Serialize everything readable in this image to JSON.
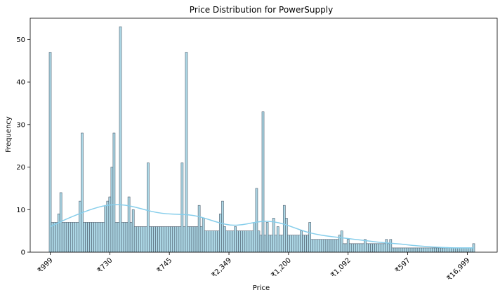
{
  "chart_data": {
    "type": "bar",
    "title": "Price Distribution for PowerSupply",
    "xlabel": "Price",
    "ylabel": "Frequency",
    "ylim": [
      0,
      55
    ],
    "yticks": [
      0,
      10,
      20,
      30,
      40,
      50
    ],
    "xtick_labels": [
      "₹999",
      "₹730",
      "₹745",
      "₹2,349",
      "₹1,200",
      "₹1,092",
      "₹597",
      "₹16,999"
    ],
    "xtick_bins": [
      0,
      28,
      56,
      84,
      112,
      140,
      168,
      196
    ],
    "bin_count": 200,
    "values": [
      47,
      7,
      7,
      7,
      9,
      14,
      7,
      7,
      7,
      7,
      7,
      7,
      7,
      7,
      12,
      28,
      7,
      7,
      7,
      7,
      7,
      7,
      7,
      7,
      7,
      7,
      11,
      12,
      13,
      20,
      28,
      7,
      7,
      53,
      7,
      7,
      7,
      13,
      7,
      10,
      6,
      6,
      6,
      6,
      6,
      6,
      21,
      6,
      6,
      6,
      6,
      6,
      6,
      6,
      6,
      6,
      6,
      6,
      6,
      6,
      6,
      6,
      21,
      6,
      47,
      6,
      6,
      6,
      6,
      6,
      11,
      6,
      8,
      5,
      5,
      5,
      5,
      5,
      5,
      5,
      9,
      12,
      6,
      5,
      5,
      5,
      5,
      6,
      5,
      5,
      5,
      5,
      5,
      5,
      5,
      5,
      7,
      15,
      5,
      4,
      33,
      4,
      7,
      4,
      4,
      8,
      4,
      6,
      4,
      4,
      11,
      8,
      4,
      4,
      4,
      4,
      4,
      4,
      5,
      4,
      4,
      4,
      7,
      3,
      3,
      3,
      3,
      3,
      3,
      3,
      3,
      3,
      3,
      3,
      3,
      3,
      4,
      5,
      2,
      2,
      3,
      2,
      2,
      2,
      2,
      2,
      2,
      2,
      3,
      2,
      2,
      2,
      2,
      2,
      2,
      2,
      2,
      2,
      3,
      2,
      3,
      1,
      1,
      1,
      1,
      1,
      1,
      1,
      1,
      1,
      1,
      1,
      1,
      1,
      1,
      1,
      1,
      1,
      1,
      1,
      1,
      1,
      1,
      1,
      1,
      1,
      1,
      1,
      1,
      1,
      1,
      1,
      1,
      1,
      1,
      1,
      1,
      1,
      1,
      2
    ],
    "kde": [
      [
        0,
        6.0
      ],
      [
        5,
        7.2
      ],
      [
        10,
        8.3
      ],
      [
        15,
        9.3
      ],
      [
        20,
        10.2
      ],
      [
        25,
        10.9
      ],
      [
        30,
        11.2
      ],
      [
        35,
        11.1
      ],
      [
        40,
        10.6
      ],
      [
        45,
        9.9
      ],
      [
        50,
        9.3
      ],
      [
        55,
        9.0
      ],
      [
        60,
        8.9
      ],
      [
        65,
        8.8
      ],
      [
        70,
        8.4
      ],
      [
        75,
        7.6
      ],
      [
        80,
        6.8
      ],
      [
        85,
        6.3
      ],
      [
        90,
        6.4
      ],
      [
        95,
        6.9
      ],
      [
        100,
        7.3
      ],
      [
        105,
        7.2
      ],
      [
        110,
        6.6
      ],
      [
        115,
        5.7
      ],
      [
        120,
        4.8
      ],
      [
        125,
        4.2
      ],
      [
        130,
        3.8
      ],
      [
        135,
        3.5
      ],
      [
        140,
        3.2
      ],
      [
        145,
        2.9
      ],
      [
        150,
        2.6
      ],
      [
        155,
        2.3
      ],
      [
        160,
        2.1
      ],
      [
        165,
        1.9
      ],
      [
        170,
        1.6
      ],
      [
        175,
        1.4
      ],
      [
        180,
        1.2
      ],
      [
        185,
        1.1
      ],
      [
        190,
        1.0
      ],
      [
        195,
        1.0
      ],
      [
        199,
        1.0
      ]
    ],
    "colors": {
      "bar_fill": "#add8e6",
      "bar_edge": "#4a5a6a",
      "kde": "#87ceeb"
    },
    "grid": false,
    "legend": "none"
  }
}
